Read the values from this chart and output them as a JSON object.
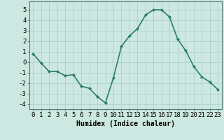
{
  "x": [
    0,
    1,
    2,
    3,
    4,
    5,
    6,
    7,
    8,
    9,
    10,
    11,
    12,
    13,
    14,
    15,
    16,
    17,
    18,
    19,
    20,
    21,
    22,
    23
  ],
  "y": [
    0.8,
    -0.1,
    -0.9,
    -0.9,
    -1.3,
    -1.2,
    -2.3,
    -2.5,
    -3.3,
    -3.9,
    -1.5,
    1.5,
    2.5,
    3.2,
    4.5,
    5.0,
    5.0,
    4.3,
    2.2,
    1.1,
    -0.4,
    -1.4,
    -1.9,
    -2.6
  ],
  "line_color": "#2d7d6e",
  "marker": "D",
  "marker_size": 2,
  "line_width": 1.2,
  "bg_color": "#cce8e0",
  "grid_color": "#b0d8d0",
  "xlabel": "Humidex (Indice chaleur)",
  "xlim": [
    -0.5,
    23.5
  ],
  "ylim": [
    -4.5,
    5.8
  ],
  "xticks": [
    0,
    1,
    2,
    3,
    4,
    5,
    6,
    7,
    8,
    9,
    10,
    11,
    12,
    13,
    14,
    15,
    16,
    17,
    18,
    19,
    20,
    21,
    22,
    23
  ],
  "yticks": [
    -4,
    -3,
    -2,
    -1,
    0,
    1,
    2,
    3,
    4,
    5
  ],
  "xlabel_fontsize": 7,
  "tick_fontsize": 6.5
}
